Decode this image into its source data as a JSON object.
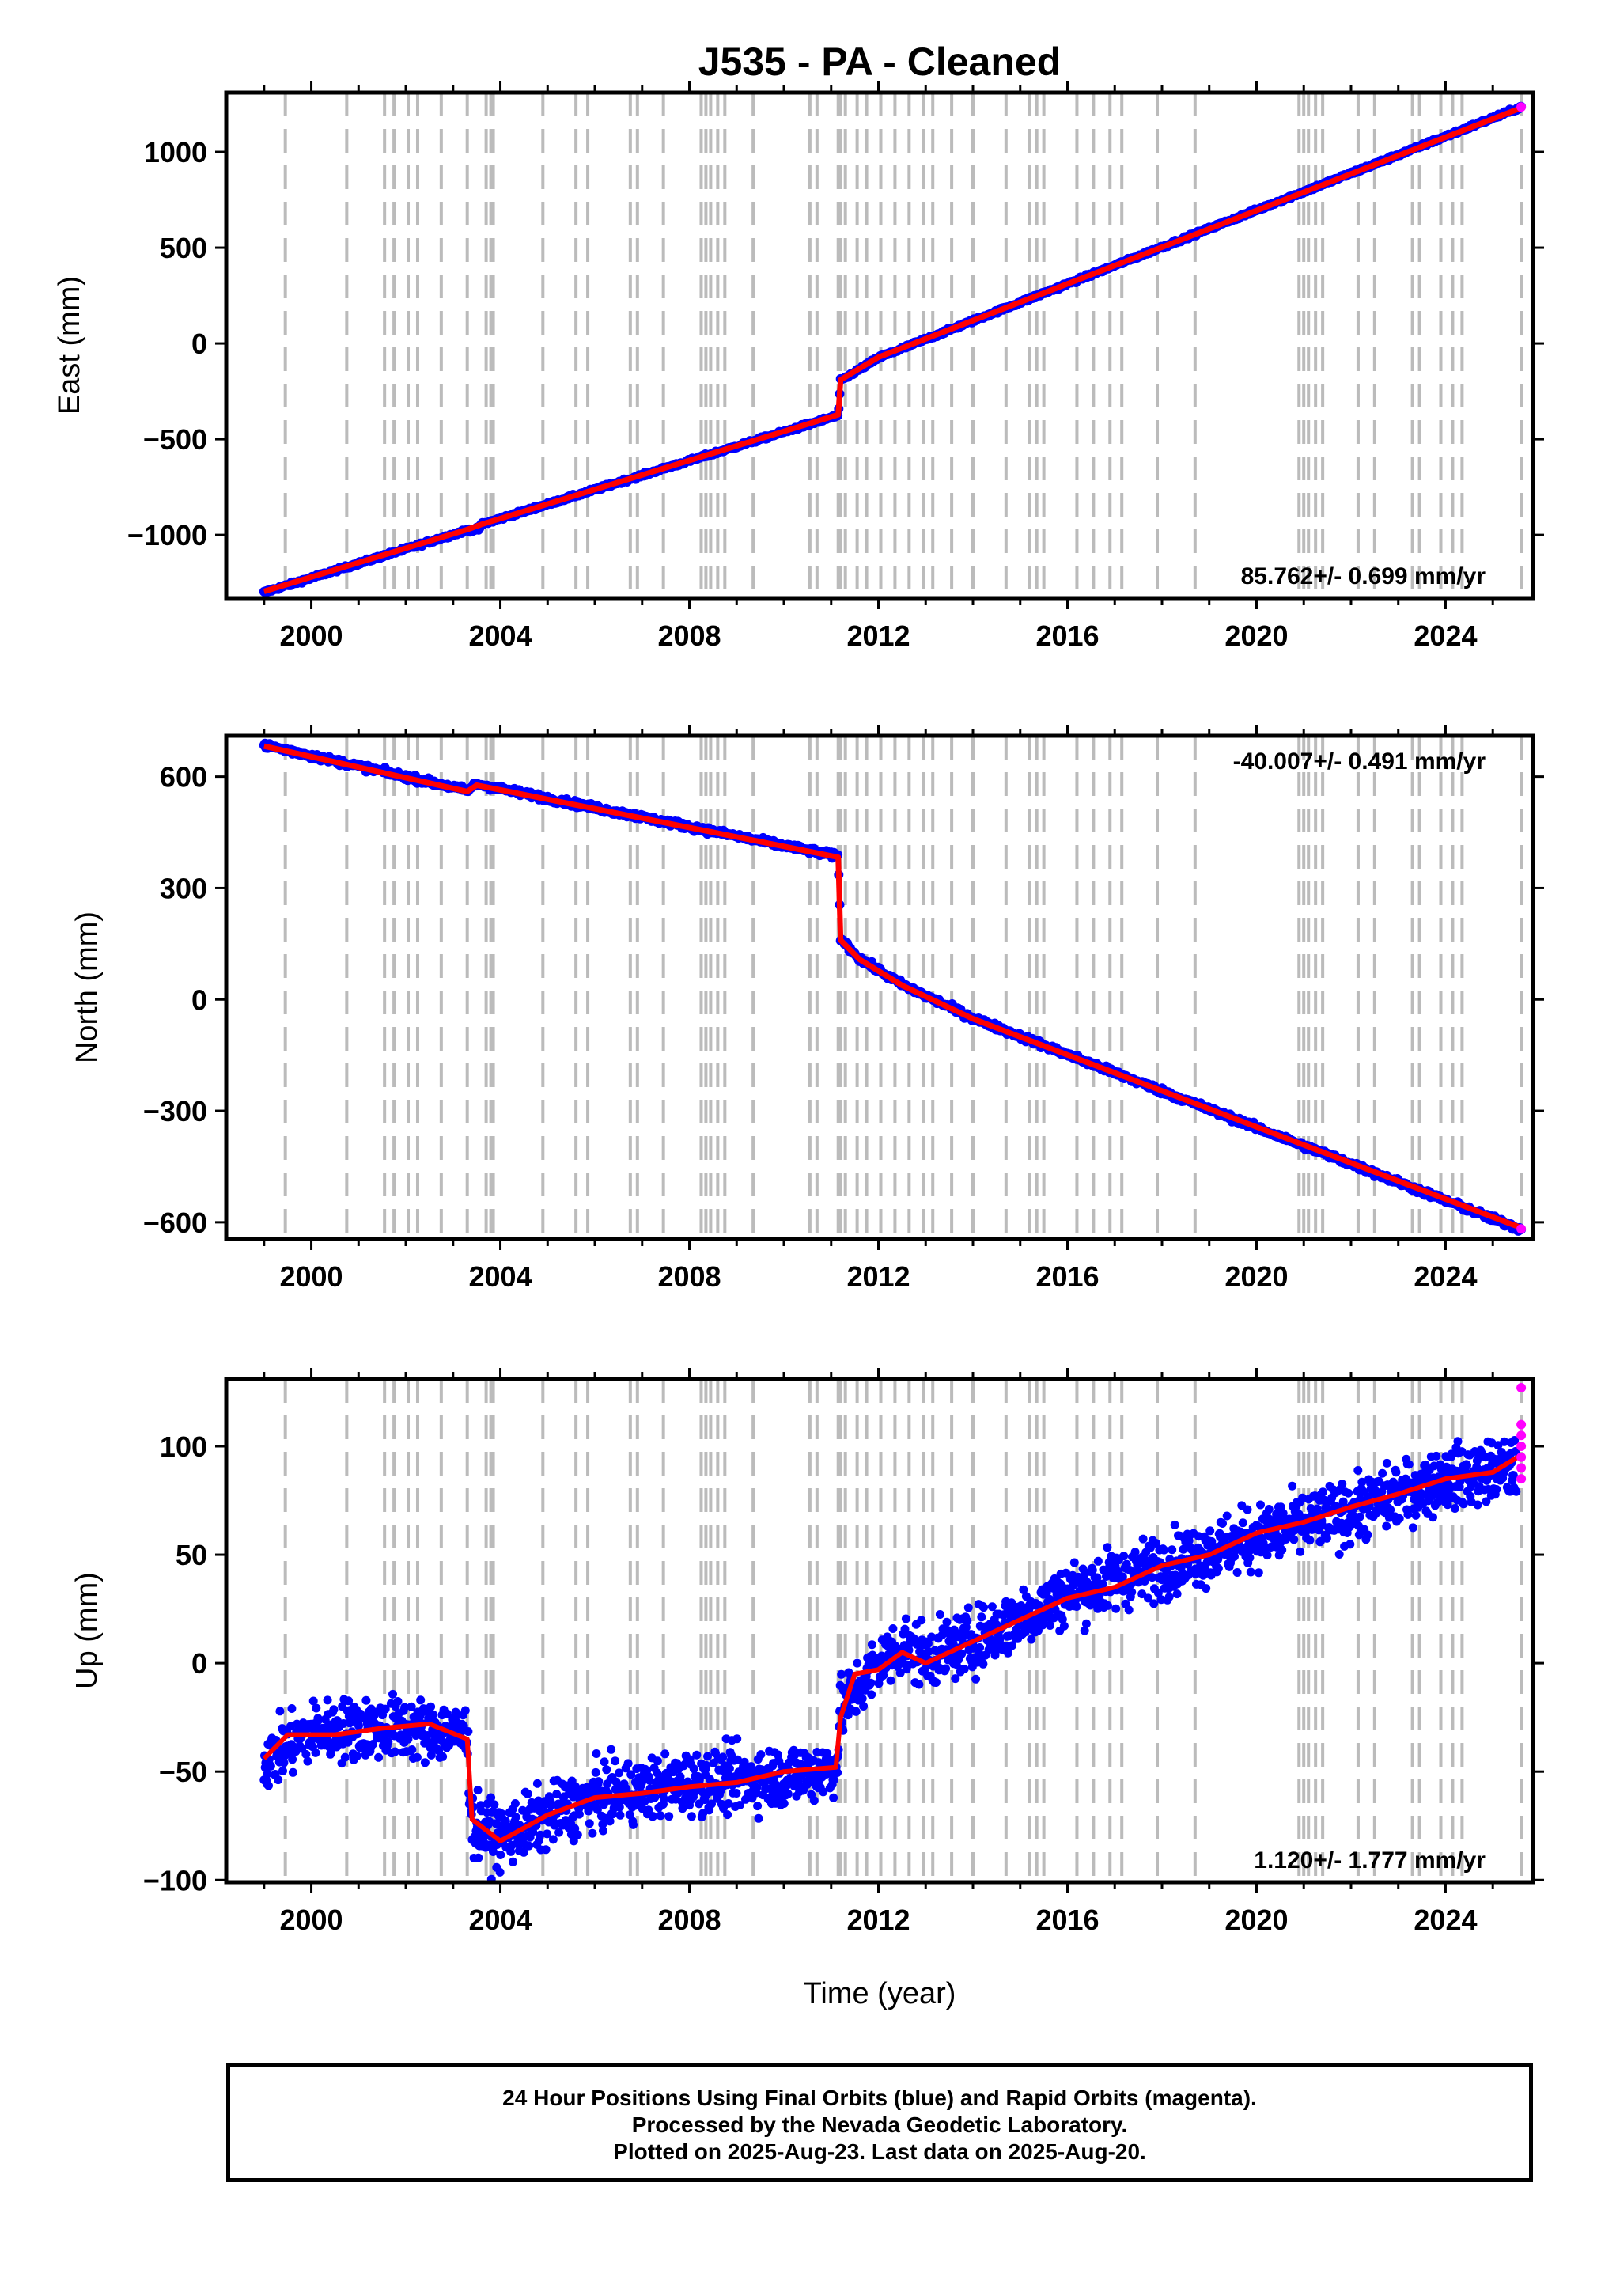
{
  "chart_data": [
    {
      "type": "scatter",
      "title": "J535  - PA - Cleaned",
      "xlabel": "",
      "ylabel": "East (mm)",
      "xlim": [
        1998.2,
        2025.85
      ],
      "ylim": [
        -1330,
        1310
      ],
      "yticks": [
        -1000,
        -500,
        0,
        500,
        1000
      ],
      "ytick_labels": [
        "−1000",
        "−500",
        "0",
        "500",
        "1000"
      ],
      "xticks": [
        2000,
        2004,
        2008,
        2012,
        2016,
        2020,
        2024
      ],
      "xtick_labels": [
        "2000",
        "2004",
        "2008",
        "2012",
        "2016",
        "2020",
        "2024"
      ],
      "rate_text": "85.762+/- 0.699 mm/yr",
      "rate_position": "bottom-right",
      "series": [
        {
          "values": [
            [
              1999.0,
              -1300
            ],
            [
              2003.3,
              -975
            ],
            [
              2003.55,
              -970
            ],
            [
              2003.6,
              -945
            ],
            [
              2011.15,
              -375
            ],
            [
              2011.2,
              -195
            ],
            [
              2012.0,
              -75
            ],
            [
              2013.5,
              70
            ],
            [
              2025.6,
              1235
            ]
          ]
        },
        {
          "values": [
            [
              1999.0,
              -1295
            ],
            [
              2003.3,
              -972
            ],
            [
              2003.6,
              -945
            ],
            [
              2011.15,
              -372
            ],
            [
              2011.2,
              -190
            ],
            [
              2012.0,
              -72
            ],
            [
              2013.5,
              72
            ],
            [
              2025.6,
              1230
            ]
          ]
        },
        {
          "values": [
            [
              2025.6,
              1235
            ]
          ]
        }
      ]
    },
    {
      "type": "scatter",
      "title": "",
      "xlabel": "",
      "ylabel": "North (mm)",
      "xlim": [
        1998.2,
        2025.85
      ],
      "ylim": [
        -645,
        710
      ],
      "yticks": [
        -600,
        -300,
        0,
        300,
        600
      ],
      "ytick_labels": [
        "−600",
        "−300",
        "0",
        "300",
        "600"
      ],
      "xticks": [
        2000,
        2004,
        2008,
        2012,
        2016,
        2020,
        2024
      ],
      "xtick_labels": [
        "2000",
        "2004",
        "2008",
        "2012",
        "2016",
        "2020",
        "2024"
      ],
      "rate_text": "-40.007+/- 0.491 mm/yr",
      "rate_position": "top-right",
      "series": [
        {
          "values": [
            [
              1999.0,
              685
            ],
            [
              2003.3,
              563
            ],
            [
              2003.5,
              580
            ],
            [
              2011.15,
              385
            ],
            [
              2011.2,
              165
            ],
            [
              2011.6,
              110
            ],
            [
              2012.5,
              40
            ],
            [
              2014.0,
              -50
            ],
            [
              2025.6,
              -620
            ]
          ]
        },
        {
          "values": [
            [
              1999.0,
              682
            ],
            [
              2003.3,
              560
            ],
            [
              2003.5,
              577
            ],
            [
              2011.15,
              383
            ],
            [
              2011.2,
              160
            ],
            [
              2011.6,
              108
            ],
            [
              2012.5,
              38
            ],
            [
              2014.0,
              -52
            ],
            [
              2025.6,
              -615
            ]
          ]
        },
        {
          "values": [
            [
              2025.6,
              -618
            ]
          ]
        }
      ]
    },
    {
      "type": "scatter",
      "title": "",
      "xlabel": "Time (year)",
      "ylabel": "Up (mm)",
      "xlim": [
        1998.2,
        2025.85
      ],
      "ylim": [
        -101,
        131
      ],
      "yticks": [
        -100,
        -50,
        0,
        50,
        100
      ],
      "ytick_labels": [
        "−100",
        "−50",
        "0",
        "50",
        "100"
      ],
      "xticks": [
        2000,
        2004,
        2008,
        2012,
        2016,
        2020,
        2024
      ],
      "xtick_labels": [
        "2000",
        "2004",
        "2008",
        "2012",
        "2016",
        "2020",
        "2024"
      ],
      "rate_text": "1.120+/- 1.777 mm/yr",
      "rate_position": "bottom-right",
      "series": [
        {
          "values": [
            [
              1999.0,
              -45
            ],
            [
              2000.0,
              -32
            ],
            [
              2001.0,
              -30
            ],
            [
              2002.0,
              -30
            ],
            [
              2003.3,
              -33
            ],
            [
              2003.4,
              -75
            ],
            [
              2004.0,
              -80
            ],
            [
              2006.0,
              -62
            ],
            [
              2008.0,
              -55
            ],
            [
              2010.0,
              -52
            ],
            [
              2011.1,
              -48
            ],
            [
              2011.2,
              -22
            ],
            [
              2012.0,
              0
            ],
            [
              2012.5,
              8
            ],
            [
              2013.0,
              3
            ],
            [
              2014.0,
              10
            ],
            [
              2016.0,
              32
            ],
            [
              2018.0,
              45
            ],
            [
              2020.0,
              58
            ],
            [
              2022.0,
              70
            ],
            [
              2024.0,
              85
            ],
            [
              2025.5,
              90
            ]
          ]
        },
        {
          "values": [
            [
              1999.0,
              -44
            ],
            [
              1999.5,
              -33
            ],
            [
              2000.5,
              -33
            ],
            [
              2001.5,
              -30
            ],
            [
              2002.5,
              -28
            ],
            [
              2003.3,
              -35
            ],
            [
              2003.4,
              -72
            ],
            [
              2004.0,
              -82
            ],
            [
              2005.0,
              -70
            ],
            [
              2006.0,
              -62
            ],
            [
              2007.0,
              -60
            ],
            [
              2008.0,
              -57
            ],
            [
              2009.0,
              -55
            ],
            [
              2010.0,
              -50
            ],
            [
              2011.1,
              -48
            ],
            [
              2011.2,
              -25
            ],
            [
              2011.5,
              -5
            ],
            [
              2012.0,
              -3
            ],
            [
              2012.5,
              5
            ],
            [
              2013.0,
              0
            ],
            [
              2014.0,
              10
            ],
            [
              2015.0,
              20
            ],
            [
              2016.0,
              30
            ],
            [
              2017.0,
              35
            ],
            [
              2018.0,
              45
            ],
            [
              2019.0,
              50
            ],
            [
              2020.0,
              60
            ],
            [
              2021.0,
              65
            ],
            [
              2022.0,
              72
            ],
            [
              2023.0,
              78
            ],
            [
              2024.0,
              85
            ],
            [
              2025.0,
              88
            ],
            [
              2025.6,
              96
            ]
          ]
        },
        {
          "values": [
            [
              2025.6,
              127
            ],
            [
              2025.6,
              110
            ],
            [
              2025.6,
              105
            ],
            [
              2025.6,
              100
            ],
            [
              2025.6,
              95
            ],
            [
              2025.6,
              90
            ],
            [
              2025.6,
              85
            ]
          ]
        }
      ]
    }
  ],
  "event_lines": [
    1999.45,
    2000.75,
    2001.55,
    2001.75,
    2002.05,
    2002.25,
    2002.75,
    2003.3,
    2003.7,
    2003.8,
    2003.85,
    2004.9,
    2005.6,
    2005.85,
    2006.75,
    2006.9,
    2007.45,
    2008.25,
    2008.35,
    2008.45,
    2008.6,
    2008.75,
    2009.35,
    2010.55,
    2010.7,
    2011.15,
    2011.2,
    2011.3,
    2011.55,
    2011.75,
    2012.05,
    2012.35,
    2012.65,
    2012.95,
    2013.15,
    2013.55,
    2014.0,
    2014.7,
    2015.2,
    2015.35,
    2015.5,
    2016.2,
    2016.55,
    2016.9,
    2017.15,
    2017.9,
    2018.7,
    2020.9,
    2021.0,
    2021.1,
    2021.25,
    2021.4,
    2022.15,
    2022.5,
    2023.3,
    2023.45,
    2023.9,
    2024.15,
    2024.35,
    2025.6
  ],
  "colors": {
    "final_orbits": "#0000ff",
    "trend": "#ff0000",
    "rapid_orbits": "#ff00ff",
    "event_line": "#bbbbbb"
  },
  "footer": {
    "line1": "24 Hour Positions Using Final Orbits (blue) and Rapid Orbits (magenta).",
    "line2": "Processed by the Nevada Geodetic Laboratory.",
    "line3": "Plotted on 2025-Aug-23. Last data on 2025-Aug-20."
  }
}
